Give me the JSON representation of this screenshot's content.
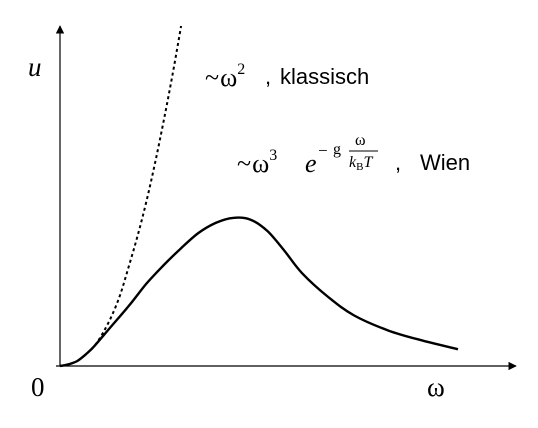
{
  "chart_data": {
    "type": "line",
    "title": "",
    "xlabel": "ω",
    "ylabel": "u",
    "origin_label": "0",
    "grid": false,
    "legend": "none",
    "series": [
      {
        "id": "classical",
        "style": "dotted",
        "annotation": {
          "prefix": "~",
          "base": "ω",
          "exponent": "2",
          "separator": ",",
          "text": "klassisch"
        },
        "x": [
          0.0,
          0.05,
          0.1,
          0.15,
          0.2,
          0.25,
          0.3,
          0.35,
          0.4,
          0.45,
          0.5,
          0.55,
          0.6,
          0.65,
          0.7
        ],
        "y": [
          0.0,
          0.01,
          0.03,
          0.07,
          0.12,
          0.2,
          0.3,
          0.43,
          0.6,
          0.78,
          0.98,
          1.21,
          1.46,
          1.73,
          2.02
        ]
      },
      {
        "id": "wien",
        "style": "solid",
        "annotation": {
          "prefix": "~",
          "base": "ω",
          "exponent": "3",
          "e": "e",
          "exp_sign": "−",
          "exp_g": "g",
          "frac_num": "ω",
          "frac_den_k": "k",
          "frac_den_sub": "B",
          "frac_den_T": "T",
          "separator": ",",
          "text": "Wien"
        },
        "x": [
          0.0,
          0.05,
          0.1,
          0.15,
          0.2,
          0.3,
          0.4,
          0.5,
          0.6,
          0.7,
          0.8,
          0.9,
          1.0,
          1.1,
          1.2,
          1.3,
          1.4,
          1.55,
          1.7,
          1.9,
          2.1,
          2.3
        ],
        "y": [
          0.0,
          0.01,
          0.03,
          0.07,
          0.12,
          0.24,
          0.36,
          0.49,
          0.6,
          0.7,
          0.79,
          0.85,
          0.88,
          0.87,
          0.8,
          0.68,
          0.55,
          0.41,
          0.3,
          0.21,
          0.15,
          0.1
        ]
      }
    ],
    "xlim": [
      0,
      2.3
    ],
    "ylim": [
      0,
      2.02
    ]
  }
}
